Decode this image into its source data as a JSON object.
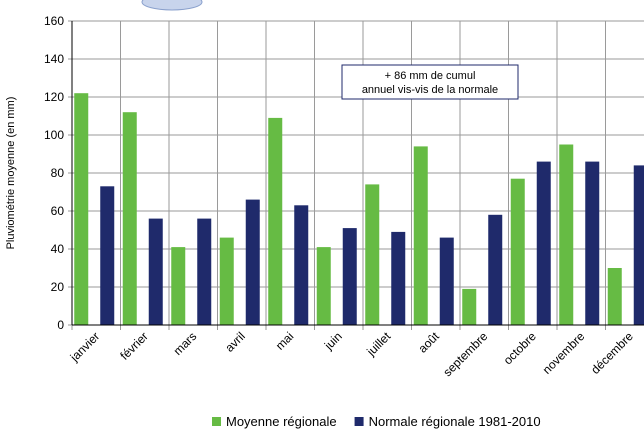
{
  "chart_data": {
    "type": "bar",
    "ylabel": "Pluviométrie moyenne (en mm)",
    "categories": [
      "janvier",
      "février",
      "mars",
      "avril",
      "mai",
      "juin",
      "juillet",
      "août",
      "septembre",
      "octobre",
      "novembre",
      "décembre"
    ],
    "series": [
      {
        "name": "Moyenne régionale",
        "color": "#66bb44",
        "values": [
          122,
          112,
          41,
          46,
          109,
          41,
          74,
          94,
          19,
          77,
          95,
          30
        ]
      },
      {
        "name": "Normale régionale 1981-2010",
        "color": "#1f2a6b",
        "values": [
          73,
          56,
          56,
          66,
          63,
          51,
          49,
          46,
          58,
          86,
          86,
          84
        ]
      }
    ],
    "annotation": [
      "+ 86 mm de cumul",
      "annuel vis-vis de la normale"
    ],
    "ylim": [
      0,
      160
    ],
    "yticks": [
      0,
      20,
      40,
      60,
      80,
      100,
      120,
      140,
      160
    ],
    "grid": true,
    "legend": "bottom"
  }
}
